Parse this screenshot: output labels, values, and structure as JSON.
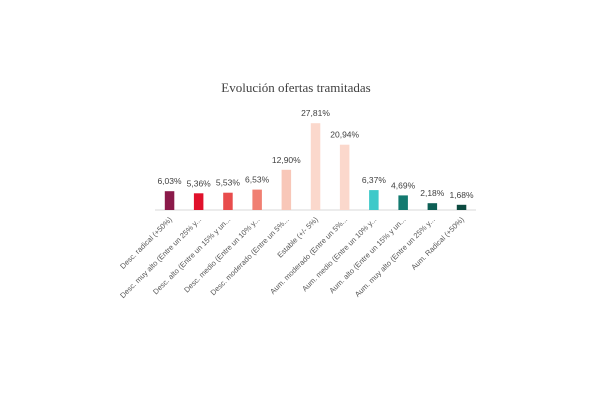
{
  "chart_data": {
    "type": "bar",
    "title": "Evolución ofertas tramitadas",
    "xlabel": "",
    "ylabel": "",
    "ylim": [
      0,
      30
    ],
    "grid": false,
    "legend": "none",
    "categories": [
      "Desc. radical (+50%)",
      "Desc. muy alto (Entre un 25% y...",
      "Desc. alto (Entre un 15% y un...",
      "Desc. medio (Entre un 10% y...",
      "Desc. moderado (Entre un 5%...",
      "Estable (+/- 5%)",
      "Aum. moderado (Entre un 5%...",
      "Aum. medio (Entre un 10% y...",
      "Aum. alto (Entre un 15% y un...",
      "Aum. muy alto (Entre un 25% y...",
      "Aum. Radical (+50%)"
    ],
    "values": [
      6.03,
      5.36,
      5.53,
      6.53,
      12.9,
      27.81,
      20.94,
      6.37,
      4.69,
      2.18,
      1.68
    ],
    "data_labels": [
      "6,03%",
      "5,36%",
      "5,53%",
      "6,53%",
      "12,90%",
      "27,81%",
      "20,94%",
      "6,37%",
      "4,69%",
      "2,18%",
      "1,68%"
    ],
    "colors": [
      "#8b1a4a",
      "#e0112b",
      "#e84c4c",
      "#f07f72",
      "#f8c7b8",
      "#fbd8cc",
      "#fbd8cc",
      "#3ec9c9",
      "#137a70",
      "#0d5f55",
      "#0c4a40"
    ]
  }
}
